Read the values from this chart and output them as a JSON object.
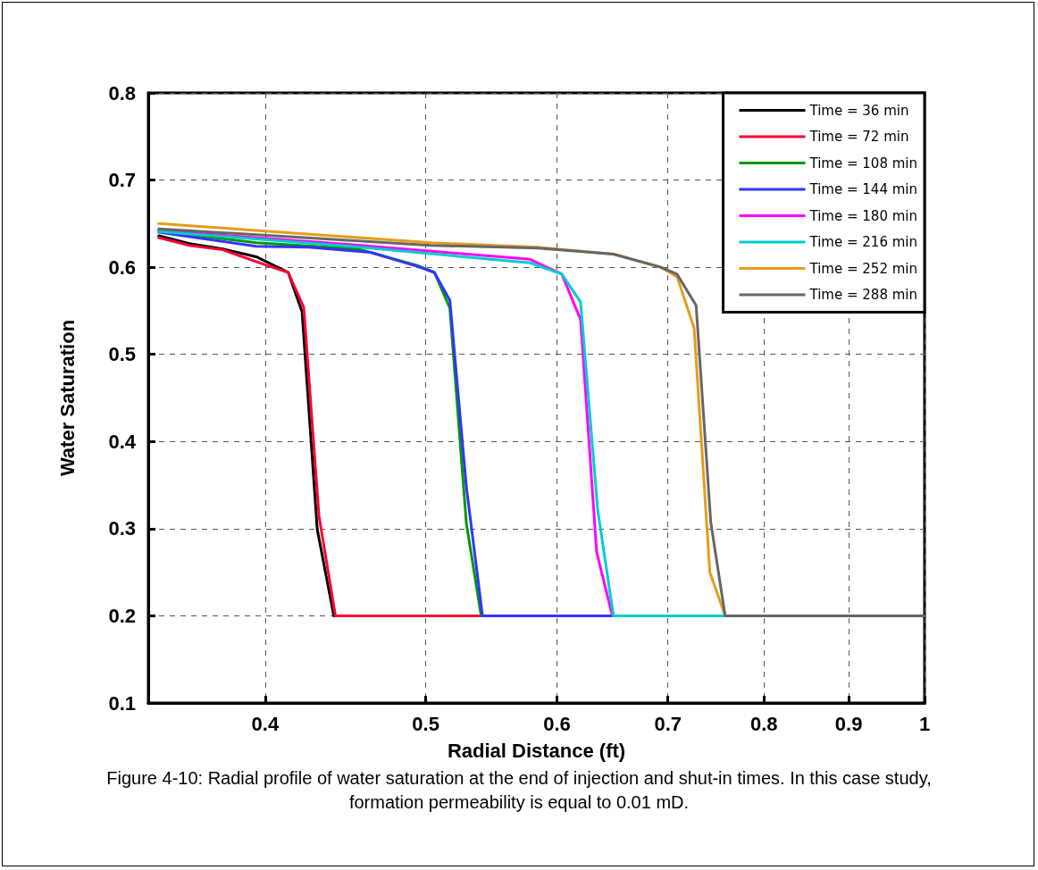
{
  "chart_data": {
    "type": "line",
    "xlabel": "Radial Distance (ft)",
    "ylabel": "Water Saturation",
    "annotations": [
      "Figure 4-10: Radial profile of water saturation at the end of injection and shut-in times. In this case study, formation permeability is equal to 0.01 mD."
    ],
    "log": "x",
    "xlim": [
      0.34,
      1
    ],
    "xticks": [
      0.4,
      0.5,
      0.6,
      0.7,
      0.8,
      0.9,
      1
    ],
    "ylim": [
      0.1,
      0.8
    ],
    "yticks": [
      0.1,
      0.2,
      0.3,
      0.4,
      0.5,
      0.6,
      0.7,
      0.8
    ],
    "grid": true,
    "legend": "top right",
    "marker": "none",
    "line_style": "solid",
    "series": [
      {
        "name": "Time = 36 min",
        "color": "#000000",
        "x": [
          0.345,
          0.36,
          0.377,
          0.395,
          0.413,
          0.421,
          0.43,
          0.44
        ],
        "values": [
          0.636,
          0.627,
          0.621,
          0.612,
          0.594,
          0.549,
          0.299,
          0.2
        ]
      },
      {
        "name": "Time = 72 min",
        "color": "#ff0033",
        "x": [
          0.345,
          0.36,
          0.377,
          0.401,
          0.413,
          0.422,
          0.431,
          0.441,
          0.45,
          0.54
        ],
        "values": [
          0.634,
          0.625,
          0.62,
          0.602,
          0.594,
          0.554,
          0.315,
          0.2,
          0.2,
          0.2
        ]
      },
      {
        "name": "Time = 108 min",
        "color": "#009900",
        "x": [
          0.345,
          0.395,
          0.455,
          0.494,
          0.506,
          0.517,
          0.529,
          0.54
        ],
        "values": [
          0.642,
          0.628,
          0.621,
          0.602,
          0.594,
          0.553,
          0.306,
          0.2
        ]
      },
      {
        "name": "Time = 144 min",
        "color": "#3333ff",
        "x": [
          0.345,
          0.395,
          0.425,
          0.463,
          0.494,
          0.506,
          0.517,
          0.529,
          0.541,
          0.648
        ],
        "values": [
          0.64,
          0.624,
          0.623,
          0.617,
          0.601,
          0.594,
          0.562,
          0.348,
          0.2,
          0.2
        ]
      },
      {
        "name": "Time = 180 min",
        "color": "#ff00ff",
        "x": [
          0.345,
          0.45,
          0.578,
          0.604,
          0.62,
          0.634,
          0.648
        ],
        "values": [
          0.642,
          0.626,
          0.609,
          0.592,
          0.54,
          0.273,
          0.2
        ]
      },
      {
        "name": "Time = 216 min",
        "color": "#00cccc",
        "x": [
          0.345,
          0.45,
          0.578,
          0.604,
          0.62,
          0.635,
          0.649,
          0.758
        ],
        "values": [
          0.641,
          0.624,
          0.605,
          0.592,
          0.56,
          0.321,
          0.2,
          0.2
        ]
      },
      {
        "name": "Time = 252 min",
        "color": "#e69c1a",
        "x": [
          0.345,
          0.504,
          0.584,
          0.649,
          0.693,
          0.709,
          0.726,
          0.742,
          0.758
        ],
        "values": [
          0.65,
          0.628,
          0.623,
          0.615,
          0.6,
          0.589,
          0.53,
          0.25,
          0.2
        ]
      },
      {
        "name": "Time = 288 min",
        "color": "#666666",
        "x": [
          0.345,
          0.504,
          0.584,
          0.649,
          0.693,
          0.709,
          0.728,
          0.743,
          0.758,
          1
        ],
        "values": [
          0.644,
          0.625,
          0.622,
          0.615,
          0.6,
          0.592,
          0.556,
          0.307,
          0.2,
          0.2
        ]
      }
    ]
  }
}
